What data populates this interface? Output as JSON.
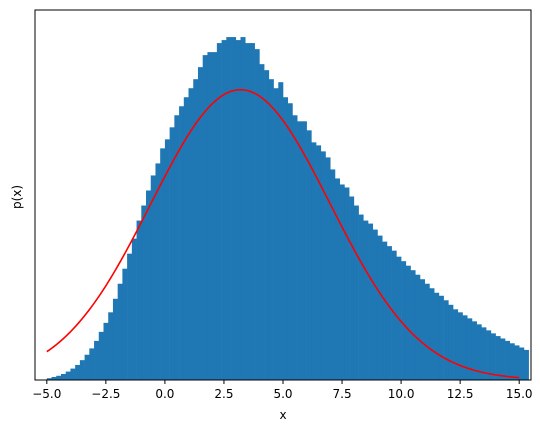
{
  "chart_data": {
    "type": "bar",
    "subtype": "histogram-with-curve",
    "xlabel": "x",
    "ylabel": "p(x)",
    "xlim": [
      -5.5,
      15.5
    ],
    "ylim": [
      0,
      0.123
    ],
    "y_ticks_shown": false,
    "grid": false,
    "legend": "none",
    "x_ticks": [
      -5.0,
      -2.5,
      0.0,
      2.5,
      5.0,
      7.5,
      10.0,
      12.5,
      15.0
    ],
    "x_tick_labels": [
      "−5.0",
      "−2.5",
      "0.0",
      "2.5",
      "5.0",
      "7.5",
      "10.0",
      "12.5",
      "15.0"
    ],
    "histogram": {
      "color": "#1f77b4",
      "bin_start": -5.0,
      "bin_width": 0.2,
      "values": [
        0.0006,
        0.001,
        0.0014,
        0.002,
        0.0028,
        0.0038,
        0.005,
        0.0066,
        0.0084,
        0.0105,
        0.013,
        0.016,
        0.019,
        0.0225,
        0.027,
        0.032,
        0.037,
        0.042,
        0.047,
        0.053,
        0.058,
        0.063,
        0.068,
        0.072,
        0.077,
        0.08,
        0.084,
        0.088,
        0.091,
        0.094,
        0.097,
        0.1,
        0.104,
        0.108,
        0.109,
        0.109,
        0.112,
        0.113,
        0.114,
        0.114,
        0.113,
        0.114,
        0.112,
        0.112,
        0.11,
        0.105,
        0.103,
        0.1,
        0.097,
        0.099,
        0.094,
        0.092,
        0.088,
        0.086,
        0.086,
        0.083,
        0.079,
        0.078,
        0.076,
        0.074,
        0.07,
        0.067,
        0.065,
        0.064,
        0.061,
        0.058,
        0.055,
        0.053,
        0.052,
        0.05,
        0.048,
        0.046,
        0.0445,
        0.043,
        0.041,
        0.0395,
        0.038,
        0.0365,
        0.035,
        0.0335,
        0.032,
        0.0305,
        0.029,
        0.028,
        0.0265,
        0.025,
        0.0235,
        0.0225,
        0.0215,
        0.0205,
        0.0195,
        0.0185,
        0.0175,
        0.0165,
        0.0155,
        0.0146,
        0.0138,
        0.013,
        0.0122,
        0.0115,
        0.0108,
        0.01
      ]
    },
    "curve": {
      "color": "#ff0000",
      "type": "normal-pdf",
      "x_range": [
        -5.0,
        15.0
      ],
      "peak_x": 3.2,
      "peak_y": 0.0965,
      "sigma": 3.8
    }
  }
}
